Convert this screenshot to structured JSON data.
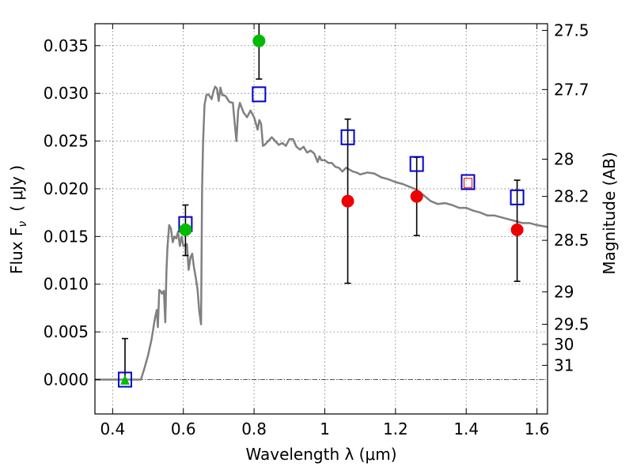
{
  "chart_data": {
    "type": "scatter",
    "xlabel": "Wavelength  λ (μm)",
    "ylabel_left": "Flux  F",
    "ylabel_left_sub": "ν",
    "ylabel_left_unit": "( μJy )",
    "ylabel_right": "Magnitude (AB)",
    "xlim": [
      0.35,
      1.63
    ],
    "ylim": [
      -0.0036,
      0.0373
    ],
    "grid": true,
    "x_ticks": [
      {
        "value": 0.4,
        "label": "0.4"
      },
      {
        "value": 0.6,
        "label": "0.6"
      },
      {
        "value": 0.8,
        "label": "0.8"
      },
      {
        "value": 1.0,
        "label": "1"
      },
      {
        "value": 1.2,
        "label": "1.2"
      },
      {
        "value": 1.4,
        "label": "1.4"
      },
      {
        "value": 1.6,
        "label": "1.6"
      }
    ],
    "y_ticks": [
      {
        "value": 0.0,
        "label": "0.000"
      },
      {
        "value": 0.005,
        "label": "0.005"
      },
      {
        "value": 0.01,
        "label": "0.010"
      },
      {
        "value": 0.015,
        "label": "0.015"
      },
      {
        "value": 0.02,
        "label": "0.020"
      },
      {
        "value": 0.025,
        "label": "0.025"
      },
      {
        "value": 0.03,
        "label": "0.030"
      },
      {
        "value": 0.035,
        "label": "0.035"
      }
    ],
    "right_ticks": [
      {
        "label": "27.5",
        "flux": 0.0366
      },
      {
        "label": "27.7",
        "flux": 0.0304
      },
      {
        "label": "28",
        "flux": 0.0231
      },
      {
        "label": "28.2",
        "flux": 0.0192
      },
      {
        "label": "28.5",
        "flux": 0.0146
      },
      {
        "label": "29",
        "flux": 0.0092
      },
      {
        "label": "29.5",
        "flux": 0.0058
      },
      {
        "label": "30",
        "flux": 0.0037
      },
      {
        "label": "31",
        "flux": 0.0015
      }
    ],
    "model_sed": {
      "color": "#808080",
      "points": [
        [
          0.35,
          0.0
        ],
        [
          0.48,
          0.0
        ],
        [
          0.49,
          0.0012
        ],
        [
          0.5,
          0.0025
        ],
        [
          0.51,
          0.0042
        ],
        [
          0.52,
          0.0065
        ],
        [
          0.525,
          0.0073
        ],
        [
          0.528,
          0.0055
        ],
        [
          0.532,
          0.0094
        ],
        [
          0.537,
          0.0092
        ],
        [
          0.54,
          0.009
        ],
        [
          0.545,
          0.0093
        ],
        [
          0.549,
          0.006
        ],
        [
          0.552,
          0.0112
        ],
        [
          0.555,
          0.0138
        ],
        [
          0.56,
          0.0162
        ],
        [
          0.565,
          0.0158
        ],
        [
          0.57,
          0.0144
        ],
        [
          0.575,
          0.015
        ],
        [
          0.58,
          0.0148
        ],
        [
          0.585,
          0.0155
        ],
        [
          0.59,
          0.014
        ],
        [
          0.595,
          0.015
        ],
        [
          0.6,
          0.014
        ],
        [
          0.61,
          0.0142
        ],
        [
          0.615,
          0.0115
        ],
        [
          0.62,
          0.0128
        ],
        [
          0.625,
          0.0132
        ],
        [
          0.63,
          0.0118
        ],
        [
          0.635,
          0.0107
        ],
        [
          0.64,
          0.0095
        ],
        [
          0.645,
          0.0072
        ],
        [
          0.65,
          0.0058
        ],
        [
          0.653,
          0.02
        ],
        [
          0.656,
          0.025
        ],
        [
          0.66,
          0.0288
        ],
        [
          0.665,
          0.0298
        ],
        [
          0.67,
          0.0299
        ],
        [
          0.675,
          0.0297
        ],
        [
          0.68,
          0.0294
        ],
        [
          0.685,
          0.0302
        ],
        [
          0.69,
          0.0307
        ],
        [
          0.695,
          0.0305
        ],
        [
          0.7,
          0.0292
        ],
        [
          0.705,
          0.0306
        ],
        [
          0.71,
          0.0298
        ],
        [
          0.715,
          0.0298
        ],
        [
          0.72,
          0.0297
        ],
        [
          0.73,
          0.0291
        ],
        [
          0.74,
          0.029
        ],
        [
          0.745,
          0.027
        ],
        [
          0.75,
          0.025
        ],
        [
          0.755,
          0.0282
        ],
        [
          0.76,
          0.029
        ],
        [
          0.77,
          0.028
        ],
        [
          0.78,
          0.0275
        ],
        [
          0.79,
          0.0282
        ],
        [
          0.8,
          0.0275
        ],
        [
          0.81,
          0.0262
        ],
        [
          0.815,
          0.0272
        ],
        [
          0.82,
          0.0268
        ],
        [
          0.825,
          0.0245
        ],
        [
          0.83,
          0.0246
        ],
        [
          0.84,
          0.025
        ],
        [
          0.85,
          0.0254
        ],
        [
          0.86,
          0.025
        ],
        [
          0.87,
          0.0246
        ],
        [
          0.88,
          0.0248
        ],
        [
          0.89,
          0.0245
        ],
        [
          0.9,
          0.0252
        ],
        [
          0.91,
          0.0252
        ],
        [
          0.92,
          0.0244
        ],
        [
          0.93,
          0.0241
        ],
        [
          0.94,
          0.0244
        ],
        [
          0.95,
          0.0238
        ],
        [
          0.96,
          0.024
        ],
        [
          0.97,
          0.0237
        ],
        [
          0.98,
          0.0228
        ],
        [
          0.985,
          0.0234
        ],
        [
          0.99,
          0.023
        ],
        [
          1.0,
          0.023
        ],
        [
          1.01,
          0.0227
        ],
        [
          1.02,
          0.0227
        ],
        [
          1.03,
          0.0223
        ],
        [
          1.04,
          0.0222
        ],
        [
          1.05,
          0.0218
        ],
        [
          1.06,
          0.0222
        ],
        [
          1.07,
          0.022
        ],
        [
          1.08,
          0.0218
        ],
        [
          1.09,
          0.0217
        ],
        [
          1.1,
          0.0215
        ],
        [
          1.12,
          0.0217
        ],
        [
          1.14,
          0.0216
        ],
        [
          1.16,
          0.0212
        ],
        [
          1.18,
          0.021
        ],
        [
          1.2,
          0.0207
        ],
        [
          1.22,
          0.0205
        ],
        [
          1.24,
          0.0202
        ],
        [
          1.26,
          0.0199
        ],
        [
          1.28,
          0.0193
        ],
        [
          1.3,
          0.0187
        ],
        [
          1.32,
          0.0184
        ],
        [
          1.34,
          0.0185
        ],
        [
          1.36,
          0.0183
        ],
        [
          1.38,
          0.018
        ],
        [
          1.4,
          0.018
        ],
        [
          1.42,
          0.0177
        ],
        [
          1.44,
          0.0175
        ],
        [
          1.46,
          0.0172
        ],
        [
          1.48,
          0.0172
        ],
        [
          1.5,
          0.017
        ],
        [
          1.52,
          0.0168
        ],
        [
          1.54,
          0.0166
        ],
        [
          1.56,
          0.0164
        ],
        [
          1.58,
          0.0164
        ],
        [
          1.6,
          0.0162
        ],
        [
          1.63,
          0.016
        ]
      ]
    },
    "model_boxes": {
      "color": "#0000cc",
      "points": [
        [
          0.435,
          0.0
        ],
        [
          0.606,
          0.0163
        ],
        [
          0.814,
          0.0299
        ],
        [
          1.065,
          0.0254
        ],
        [
          1.26,
          0.0226
        ],
        [
          1.405,
          0.0207
        ],
        [
          1.544,
          0.0191
        ]
      ]
    },
    "green_points": {
      "color": "#00bb00",
      "points": [
        {
          "x": 0.606,
          "y": 0.0157,
          "err_lo": 0.013,
          "err_hi": 0.0183
        },
        {
          "x": 0.814,
          "y": 0.0355,
          "err_lo": 0.0315,
          "err_hi": 0.0373
        }
      ]
    },
    "green_upper_limit": {
      "color": "#00bb00",
      "point": {
        "x": 0.435,
        "y": -0.0002,
        "err_hi": 0.0043
      }
    },
    "red_points": {
      "color": "#ee0000",
      "points": [
        {
          "x": 1.065,
          "y": 0.0187,
          "err_lo": 0.0101,
          "err_hi": 0.0273
        },
        {
          "x": 1.26,
          "y": 0.0192,
          "err_lo": 0.0151,
          "err_hi": 0.0233
        },
        {
          "x": 1.544,
          "y": 0.0157,
          "err_lo": 0.0103,
          "err_hi": 0.0209
        }
      ]
    },
    "small_red_box": {
      "color": "#ee0000",
      "x": 1.405,
      "y": 0.0206
    },
    "zero_line": {
      "y": 0.0,
      "style": "dash-dot"
    }
  }
}
